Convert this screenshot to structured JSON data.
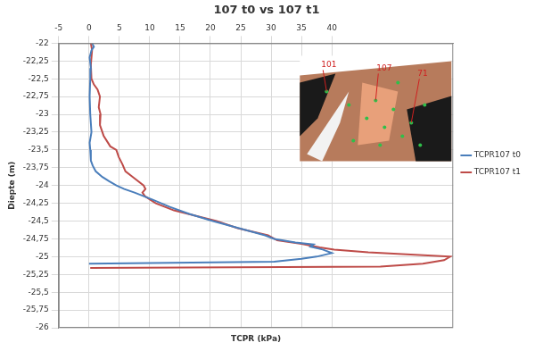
{
  "chart_data": {
    "type": "line",
    "title": "107 t0 vs 107 t1",
    "x_label": "TCPR (kPa)",
    "y_label": "Diepte (m)",
    "inset_labels": [
      "101",
      "107",
      "71"
    ],
    "xlim": [
      -5,
      60
    ],
    "xticks": [
      -5,
      0,
      5,
      10,
      15,
      20,
      25,
      30,
      35,
      40
    ],
    "ylim": [
      -26,
      -22
    ],
    "yticks": [
      -22,
      {
        "value": -22.25,
        "label": "-22,25"
      },
      {
        "value": -22.5,
        "label": "-22,5"
      },
      {
        "value": -22.75,
        "label": "-22,75"
      },
      -23,
      {
        "value": -23.25,
        "label": "-23,25"
      },
      {
        "value": -23.5,
        "label": "-23,5"
      },
      {
        "value": -23.75,
        "label": "-23,75"
      },
      -24,
      {
        "value": -24.25,
        "label": "-24,25"
      },
      {
        "value": -24.5,
        "label": "-24,5"
      },
      {
        "value": -24.75,
        "label": "-24,75"
      },
      -25,
      {
        "value": -25.25,
        "label": "-25,25"
      },
      {
        "value": -25.5,
        "label": "-25,5"
      },
      {
        "value": -25.75,
        "label": "-25,75"
      },
      -26
    ],
    "grid": true,
    "legend": "right",
    "series": [
      {
        "name": "TCPR107 t0",
        "color": "#4a7ebb",
        "x": [
          0.5,
          0.8,
          0.4,
          0.1,
          0.3,
          0.2,
          0.1,
          0.2,
          0.4,
          0.1,
          0.2,
          0.3,
          0.6,
          1.1,
          2.2,
          3.3,
          4.5,
          5.8,
          7.5,
          10.5,
          13.3,
          16.5,
          20.4,
          24.7,
          29,
          30.5,
          34,
          37,
          36.5,
          38.5,
          40,
          37.5,
          35,
          30.5,
          0
        ],
        "y": [
          -22.0,
          -22.05,
          -22.1,
          -22.2,
          -22.35,
          -22.5,
          -22.75,
          -23.0,
          -23.25,
          -23.4,
          -23.5,
          -23.65,
          -23.72,
          -23.8,
          -23.88,
          -23.94,
          -24.0,
          -24.05,
          -24.1,
          -24.2,
          -24.3,
          -24.4,
          -24.5,
          -24.6,
          -24.7,
          -24.75,
          -24.8,
          -24.83,
          -24.86,
          -24.9,
          -24.95,
          -25.0,
          -25.03,
          -25.07,
          -25.1
        ]
      },
      {
        "name": "TCPR107 t1",
        "color": "#be4b48",
        "x": [
          0.3,
          0.5,
          0.3,
          0.4,
          0.8,
          1.4,
          1.8,
          1.6,
          1.9,
          1.8,
          2.4,
          3.5,
          4.5,
          4.9,
          5.5,
          6,
          7.5,
          9,
          9.3,
          8.8,
          9.2,
          11,
          14,
          21,
          24.5,
          29.5,
          31,
          35,
          38,
          40.4,
          46,
          53,
          59.5,
          58.5,
          55,
          48,
          0.2
        ],
        "y": [
          -22.0,
          -22.1,
          -22.3,
          -22.5,
          -22.58,
          -22.65,
          -22.75,
          -22.9,
          -23.0,
          -23.15,
          -23.3,
          -23.45,
          -23.5,
          -23.6,
          -23.7,
          -23.8,
          -23.9,
          -24.0,
          -24.05,
          -24.1,
          -24.15,
          -24.25,
          -24.35,
          -24.5,
          -24.6,
          -24.7,
          -24.77,
          -24.82,
          -24.87,
          -24.9,
          -24.94,
          -24.97,
          -25.0,
          -25.05,
          -25.1,
          -25.14,
          -25.16
        ]
      }
    ]
  }
}
